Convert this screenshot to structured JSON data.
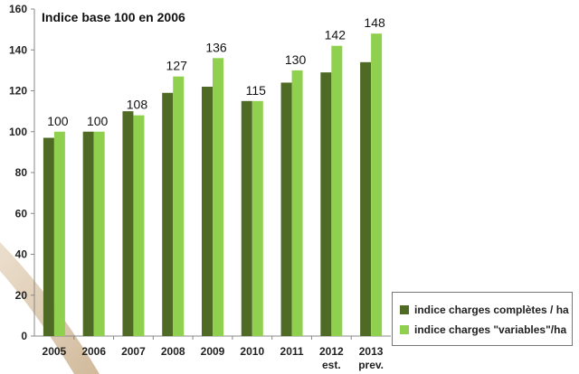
{
  "chart_data": {
    "type": "bar",
    "title": "Indice base 100 en 2006",
    "categories": [
      "2005",
      "2006",
      "2007",
      "2008",
      "2009",
      "2010",
      "2011",
      "2012",
      "2013"
    ],
    "category_sublabels": [
      "",
      "",
      "",
      "",
      "",
      "",
      "",
      "est.",
      "prev."
    ],
    "series": [
      {
        "name": "indice charges complètes / ha",
        "color": "#4e6a24",
        "values": [
          97,
          100,
          110,
          119,
          122,
          115,
          124,
          129,
          134
        ]
      },
      {
        "name": "indice charges \"variables\"/ha",
        "color": "#8fd14f",
        "values": [
          100,
          100,
          108,
          127,
          136,
          115,
          130,
          142,
          148
        ]
      }
    ],
    "data_labels": [
      "100",
      "100",
      "108",
      "127",
      "136",
      "115",
      "130",
      "142",
      "148"
    ],
    "yticks": [
      0,
      20,
      40,
      60,
      80,
      100,
      120,
      140,
      160
    ],
    "ylim": [
      0,
      160
    ],
    "grid": false,
    "legend_position": "bottom-right"
  }
}
